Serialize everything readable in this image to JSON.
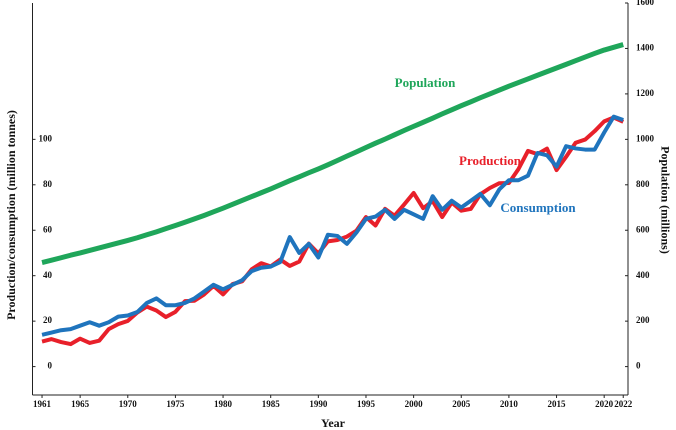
{
  "chart_data": {
    "type": "line",
    "x_label": "Year",
    "y_label": "Production/consumption (million tonnes)",
    "y2_label": "Population (millions)",
    "x": [
      1961,
      1962,
      1963,
      1964,
      1965,
      1966,
      1967,
      1968,
      1969,
      1970,
      1971,
      1972,
      1973,
      1974,
      1975,
      1976,
      1977,
      1978,
      1979,
      1980,
      1981,
      1982,
      1983,
      1984,
      1985,
      1986,
      1987,
      1988,
      1989,
      1990,
      1991,
      1992,
      1993,
      1994,
      1995,
      1996,
      1997,
      1998,
      1999,
      2000,
      2001,
      2002,
      2003,
      2004,
      2005,
      2006,
      2007,
      2008,
      2009,
      2010,
      2011,
      2012,
      2013,
      2014,
      2015,
      2016,
      2017,
      2018,
      2019,
      2020,
      2021,
      2022
    ],
    "series": [
      {
        "name": "Population",
        "color": "#1fa65a",
        "axis": "y2",
        "values": [
          458,
          468,
          479,
          490,
          500,
          511,
          522,
          533,
          544,
          555,
          567,
          580,
          593,
          607,
          621,
          635,
          650,
          665,
          681,
          697,
          714,
          731,
          748,
          765,
          782,
          800,
          818,
          835,
          853,
          870,
          888,
          907,
          926,
          945,
          964,
          983,
          1001,
          1020,
          1039,
          1057,
          1075,
          1093,
          1112,
          1130,
          1148,
          1165,
          1183,
          1200,
          1217,
          1234,
          1250,
          1266,
          1282,
          1298,
          1314,
          1330,
          1346,
          1362,
          1378,
          1393,
          1405,
          1417
        ]
      },
      {
        "name": "Production",
        "color": "#e8202a",
        "values": [
          11,
          12.1,
          10.8,
          9.9,
          12.3,
          10.4,
          11.4,
          16.5,
          18.7,
          20.1,
          23.8,
          26.4,
          24.7,
          21.8,
          24.1,
          28.8,
          29,
          31.7,
          35.5,
          31.8,
          36.3,
          37.5,
          42.8,
          45.5,
          44.1,
          47.1,
          44.3,
          46.2,
          54.1,
          49.8,
          55.1,
          55.7,
          57.2,
          59.8,
          65.8,
          62.1,
          69.4,
          66.4,
          71.3,
          76.4,
          69.7,
          72.8,
          65.8,
          72.2,
          68.6,
          69.4,
          75.8,
          78.6,
          80.7,
          80.8,
          86.9,
          94.9,
          93.5,
          95.9,
          86.5,
          92.3,
          98.5,
          99.9,
          103.6,
          107.9,
          109.6,
          107.7
        ]
      },
      {
        "name": "Consumption",
        "color": "#1f74bd",
        "values": [
          14,
          15,
          16,
          16.5,
          18,
          19.5,
          18,
          19.5,
          22,
          22.5,
          24,
          28,
          30,
          27,
          27,
          28,
          30,
          33,
          36,
          34,
          36,
          38,
          42,
          43.5,
          44,
          46,
          57,
          50,
          54,
          48,
          58,
          57.5,
          54,
          59,
          65,
          66,
          69,
          65,
          69,
          67,
          65,
          75,
          69,
          73,
          70,
          73,
          76,
          71,
          78,
          82,
          82,
          84,
          94,
          93,
          88,
          97,
          96,
          95.5,
          95.5,
          103,
          110,
          108.5
        ]
      }
    ],
    "xlim": [
      1960,
      2022.5
    ],
    "xticks": [
      1961,
      1965,
      1970,
      1975,
      1980,
      1985,
      1990,
      1995,
      2000,
      2005,
      2010,
      2015,
      2020,
      2022
    ],
    "ylim": [
      -12.5,
      160
    ],
    "yticks": [
      0,
      20,
      40,
      60,
      80,
      100
    ],
    "y2lim": [
      -125,
      1600
    ],
    "y2ticks": [
      0,
      200,
      400,
      600,
      800,
      1000,
      1200,
      1400,
      1600
    ]
  }
}
